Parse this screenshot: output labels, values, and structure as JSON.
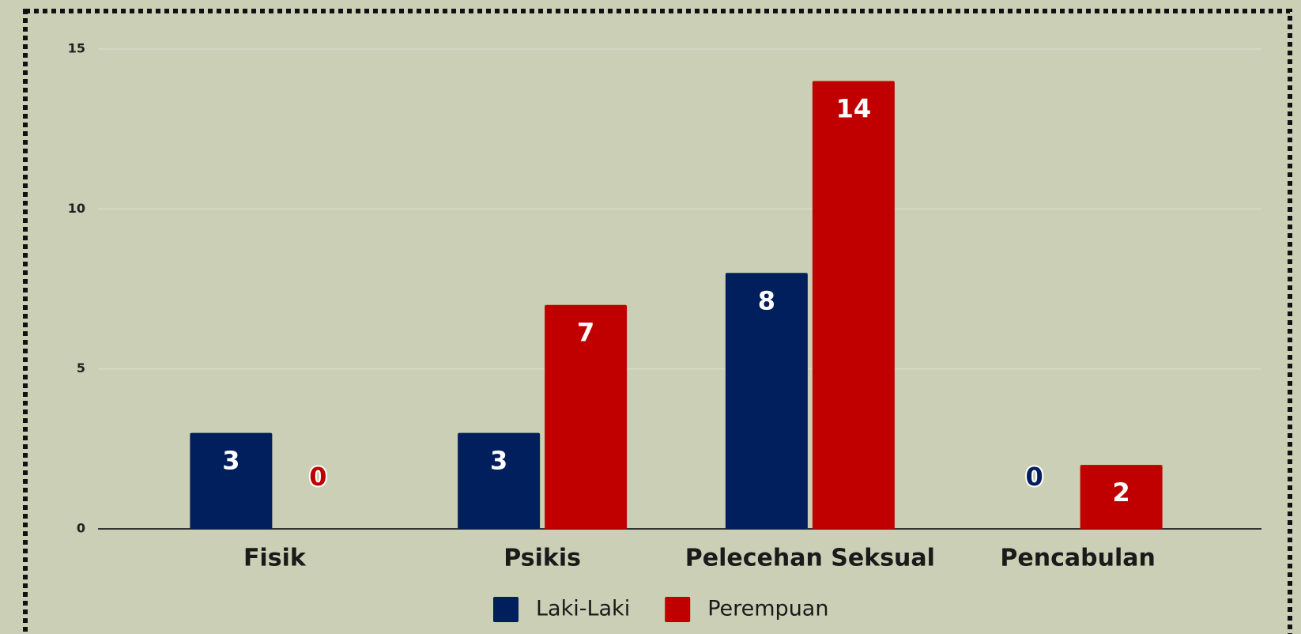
{
  "chart_data": {
    "type": "bar",
    "categories": [
      "Fisik",
      "Psikis",
      "Pelecehan Seksual",
      "Pencabulan"
    ],
    "series": [
      {
        "name": "Laki-Laki",
        "color": "#001f5c",
        "values": [
          3,
          3,
          8,
          0
        ]
      },
      {
        "name": "Perempuan",
        "color": "#c00000",
        "values": [
          0,
          7,
          14,
          2
        ]
      }
    ],
    "ylim": [
      0,
      15
    ],
    "yticks": [
      0,
      5,
      10,
      15
    ],
    "grid": true,
    "legend": "bottom"
  }
}
